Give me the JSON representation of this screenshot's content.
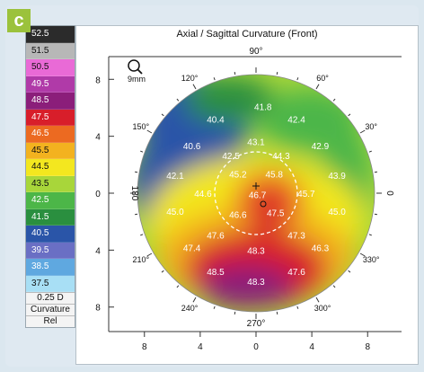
{
  "panel_label": "c",
  "scale": {
    "steps": [
      {
        "label": "52.5",
        "color": "#2b2b2b"
      },
      {
        "label": "51.5",
        "color": "#b7b7b7"
      },
      {
        "label": "50.5",
        "color": "#e96ad6"
      },
      {
        "label": "49.5",
        "color": "#b03aa8"
      },
      {
        "label": "48.5",
        "color": "#8b1e7a"
      },
      {
        "label": "47.5",
        "color": "#d81e2a"
      },
      {
        "label": "46.5",
        "color": "#ec6a21"
      },
      {
        "label": "45.5",
        "color": "#f3b21f"
      },
      {
        "label": "44.5",
        "color": "#f3e71f"
      },
      {
        "label": "43.5",
        "color": "#a8d63a"
      },
      {
        "label": "42.5",
        "color": "#4cb648"
      },
      {
        "label": "41.5",
        "color": "#2a8f3f"
      },
      {
        "label": "40.5",
        "color": "#2a55a8"
      },
      {
        "label": "39.5",
        "color": "#6a6fc4"
      },
      {
        "label": "38.5",
        "color": "#5fa8e0"
      },
      {
        "label": "37.5",
        "color": "#a8dff5"
      }
    ],
    "step_label": "0.25 D",
    "mode_label": "Curvature",
    "ref_label": "Rel"
  },
  "map": {
    "title": "Axial / Sagittal Curvature (Front)",
    "zoom_label": "9mm",
    "axis_top": "90°",
    "axis_bottom": "270°",
    "axis_left": "180",
    "axis_right": "0",
    "angle_labels": [
      {
        "text": "120°",
        "angle": 120
      },
      {
        "text": "60°",
        "angle": 60
      },
      {
        "text": "150°",
        "angle": 150
      },
      {
        "text": "30°",
        "angle": 30
      },
      {
        "text": "210°",
        "angle": 210
      },
      {
        "text": "330°",
        "angle": 330
      },
      {
        "text": "240°",
        "angle": 240
      },
      {
        "text": "300°",
        "angle": 300
      }
    ],
    "y_ticks": [
      {
        "text": "8",
        "value": 8
      },
      {
        "text": "4",
        "value": 4
      },
      {
        "text": "0",
        "value": 0
      },
      {
        "text": "4",
        "value": -4
      },
      {
        "text": "8",
        "value": -8
      }
    ],
    "x_ticks": [
      {
        "text": "8",
        "value": -8
      },
      {
        "text": "4",
        "value": -4
      },
      {
        "text": "0",
        "value": 0
      },
      {
        "text": "4",
        "value": 4
      },
      {
        "text": "8",
        "value": 8
      }
    ],
    "values": [
      {
        "text": "41.8",
        "x": 0.5,
        "y": 6.2
      },
      {
        "text": "40.4",
        "x": -2.9,
        "y": 5.3
      },
      {
        "text": "42.4",
        "x": 2.9,
        "y": 5.3
      },
      {
        "text": "40.6",
        "x": -4.6,
        "y": 3.4
      },
      {
        "text": "43.1",
        "x": 0,
        "y": 3.7
      },
      {
        "text": "42.9",
        "x": 4.6,
        "y": 3.4
      },
      {
        "text": "42.5",
        "x": -1.8,
        "y": 2.7
      },
      {
        "text": "44.3",
        "x": 1.8,
        "y": 2.7
      },
      {
        "text": "42.1",
        "x": -5.8,
        "y": 1.3
      },
      {
        "text": "45.2",
        "x": -1.3,
        "y": 1.4
      },
      {
        "text": "45.8",
        "x": 1.3,
        "y": 1.4
      },
      {
        "text": "43.9",
        "x": 5.8,
        "y": 1.3
      },
      {
        "text": "44.6",
        "x": -3.8,
        "y": 0
      },
      {
        "text": "46.7",
        "x": 0.1,
        "y": -0.1
      },
      {
        "text": "45.7",
        "x": 3.6,
        "y": 0
      },
      {
        "text": "45.0",
        "x": -5.8,
        "y": -1.3
      },
      {
        "text": "46.6",
        "x": -1.3,
        "y": -1.5
      },
      {
        "text": "47.5",
        "x": 1.4,
        "y": -1.4
      },
      {
        "text": "45.0",
        "x": 5.8,
        "y": -1.3
      },
      {
        "text": "47.6",
        "x": -2.9,
        "y": -3.0
      },
      {
        "text": "47.3",
        "x": 2.9,
        "y": -3.0
      },
      {
        "text": "47.4",
        "x": -4.6,
        "y": -3.9
      },
      {
        "text": "48.3",
        "x": 0,
        "y": -4.1
      },
      {
        "text": "46.3",
        "x": 4.6,
        "y": -3.9
      },
      {
        "text": "48.5",
        "x": -2.9,
        "y": -5.6
      },
      {
        "text": "47.6",
        "x": 2.9,
        "y": -5.6
      },
      {
        "text": "48.3",
        "x": 0,
        "y": -6.3
      }
    ]
  }
}
